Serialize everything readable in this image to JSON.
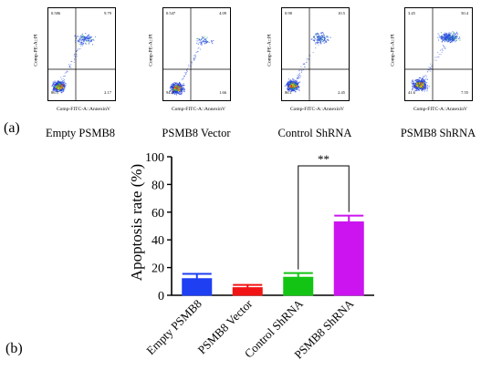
{
  "panel_labels": {
    "a": "(a)",
    "b": "(b)"
  },
  "flow_panels": [
    {
      "caption": "Empty PSMB8",
      "xaxis": "Comp-FITC-A::AnnexinV",
      "yaxis": "Comp-PE-A::PI",
      "q_ul": "0.586",
      "q_ur": "9.79",
      "q_ll": "86.5",
      "q_lr": "2.17"
    },
    {
      "caption": "PSMB8 Vector",
      "xaxis": "Comp-FITC-A::AnnexinV",
      "yaxis": "Comp-PE-A::PI",
      "q_ul": "0.547",
      "q_ur": "4.09",
      "q_ll": "94.0",
      "q_lr": "1.66"
    },
    {
      "caption": "Control ShRNA",
      "xaxis": "Comp-FITC-A::AnnexinV",
      "yaxis": "Comp-PE-A::PI",
      "q_ul": "0.98",
      "q_ur": "10.5",
      "q_ll": "86.1",
      "q_lr": "2.45"
    },
    {
      "caption": "PSMB8 ShRNA",
      "xaxis": "Comp-FITC-A::AnnexinV",
      "yaxis": "Comp-PE-A::PI",
      "q_ul": "3.45",
      "q_ur": "50.4",
      "q_ll": "41.6",
      "q_lr": "7.55"
    }
  ],
  "chart_data": {
    "type": "bar",
    "categories": [
      "Empty PSMB8",
      "PSMB8 Vector",
      "Control ShRNA",
      "PSMB8 ShRNA"
    ],
    "values": [
      12,
      5.5,
      13,
      53
    ],
    "errors": [
      3.5,
      2,
      3,
      4.5
    ],
    "colors": [
      "#1f3ff2",
      "#f21414",
      "#14c414",
      "#cc14f0"
    ],
    "ylabel": "Apoptosis rate (%)",
    "ylim": [
      0,
      100
    ],
    "yticks": [
      "0",
      "20",
      "40",
      "60",
      "80",
      "100"
    ],
    "significance": {
      "label": "**",
      "from": 2,
      "to": 3
    }
  }
}
